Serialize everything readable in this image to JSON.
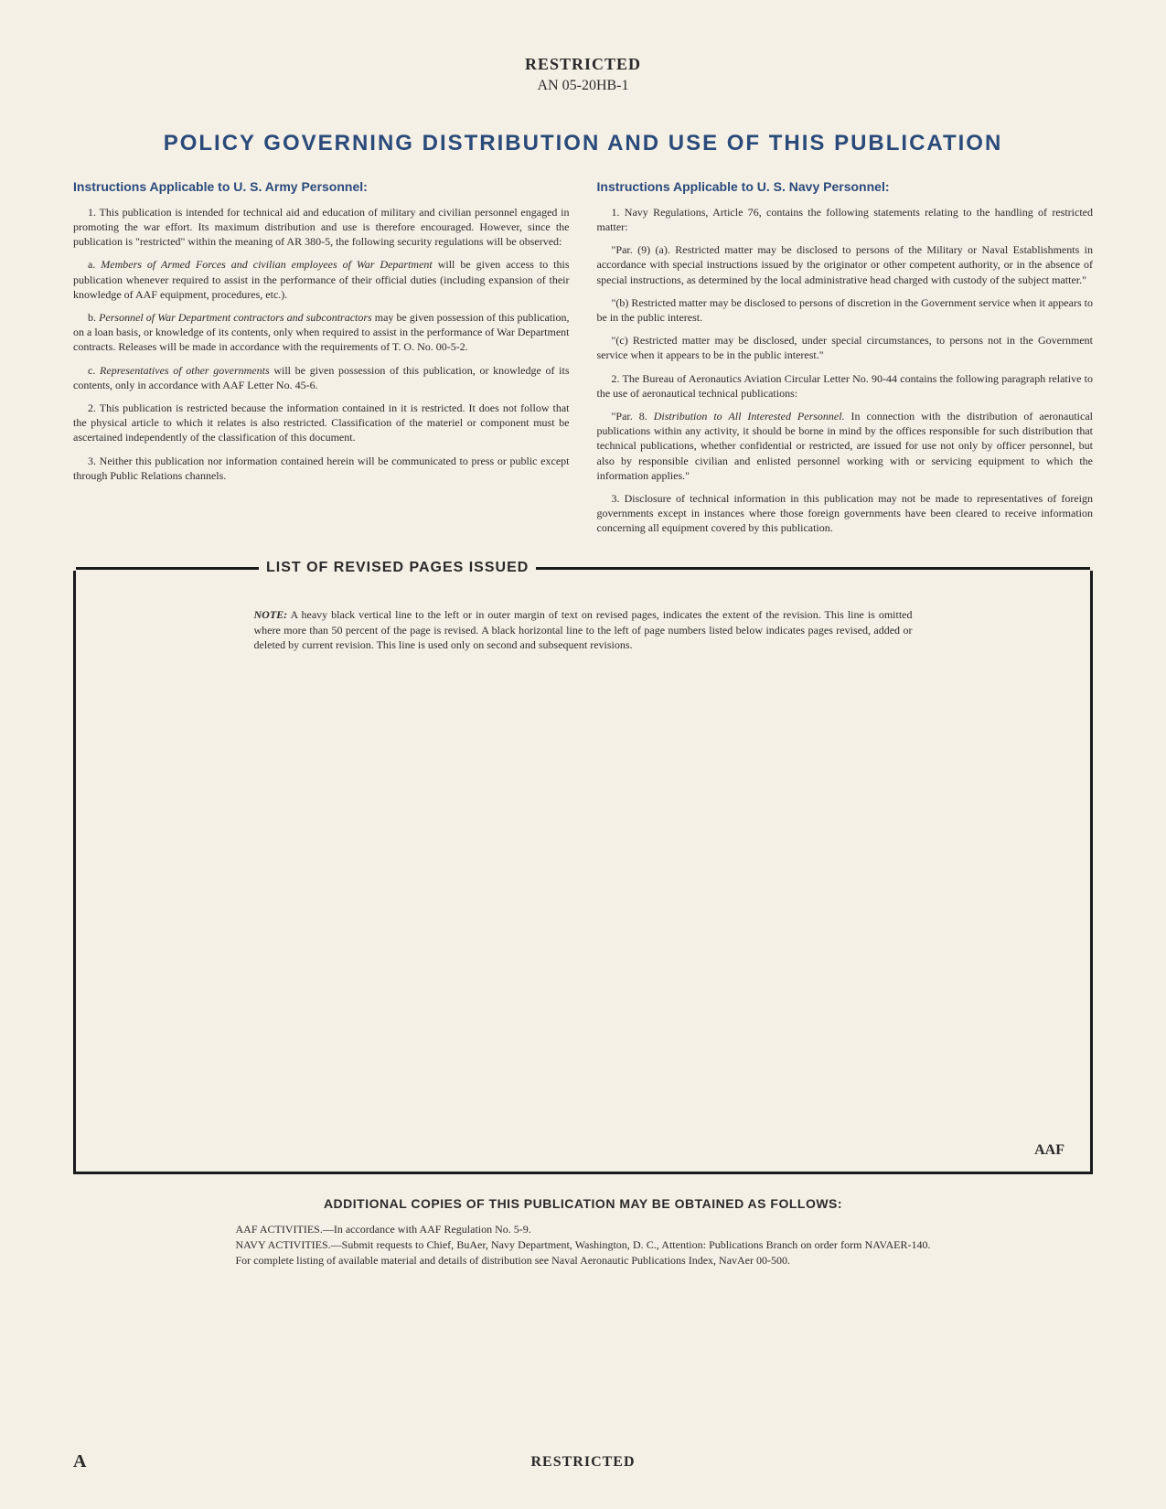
{
  "header": {
    "classification": "RESTRICTED",
    "doc_number": "AN 05-20HB-1"
  },
  "main_title": "POLICY GOVERNING DISTRIBUTION AND USE OF THIS PUBLICATION",
  "army": {
    "heading": "Instructions Applicable to U. S. Army Personnel:",
    "p1": "1. This publication is intended for technical aid and education of military and civilian personnel engaged in promoting the war effort. Its maximum distribution and use is therefore encouraged. However, since the publication is \"restricted\" within the meaning of AR 380-5, the following security regulations will be observed:",
    "pa_lead": "a. ",
    "pa_italic": "Members of Armed Forces and civilian employees of War Department",
    "pa_rest": " will be given access to this publication whenever required to assist in the performance of their official duties (including expansion of their knowledge of AAF equipment, procedures, etc.).",
    "pb_lead": "b. ",
    "pb_italic": "Personnel of War Department contractors and subcontractors",
    "pb_rest": " may be given possession of this publication, on a loan basis, or knowledge of its contents, only when required to assist in the performance of War Department contracts. Releases will be made in accordance with the requirements of T. O. No. 00-5-2.",
    "pc_lead": "c. ",
    "pc_italic": "Representatives of other governments",
    "pc_rest": " will be given possession of this publication, or knowledge of its contents, only in accordance with AAF Letter No. 45-6.",
    "p2": "2. This publication is restricted because the information contained in it is restricted. It does not follow that the physical article to which it relates is also restricted. Classification of the materiel or component must be ascertained independently of the classification of this document.",
    "p3": "3. Neither this publication nor information contained herein will be communicated to press or public except through Public Relations channels."
  },
  "navy": {
    "heading": "Instructions Applicable to U. S. Navy Personnel:",
    "p1": "1. Navy Regulations, Article 76, contains the following statements relating to the handling of restricted matter:",
    "p9a": "\"Par. (9) (a). Restricted matter may be disclosed to persons of the Military or Naval Establishments in accordance with special instructions issued by the originator or other competent authority, or in the absence of special instructions, as determined by the local administrative head charged with custody of the subject matter.\"",
    "p9b": "\"(b) Restricted matter may be disclosed to persons of discretion in the Government service when it appears to be in the public interest.",
    "p9c": "\"(c) Restricted matter may be disclosed, under special circumstances, to persons not in the Government service when it appears to be in the public interest.\"",
    "p2": "2. The Bureau of Aeronautics Aviation Circular Letter No. 90-44 contains the following paragraph relative to the use of aeronautical technical publications:",
    "p8_lead": "\"Par. 8. ",
    "p8_italic": "Distribution to All Interested Personnel.",
    "p8_rest": " In connection with the distribution of aeronautical publications within any activity, it should be borne in mind by the offices responsible for such distribution that technical publications, whether confidential or restricted, are issued for use not only by officer personnel, but also by responsible civilian and enlisted personnel working with or servicing equipment to which the information applies.\"",
    "p3": "3. Disclosure of technical information in this publication may not be made to representatives of foreign governments except in instances where those foreign governments have been cleared to receive information concerning all equipment covered by this publication."
  },
  "revised": {
    "title": "LIST OF REVISED PAGES ISSUED",
    "note_lead": "NOTE:",
    "note_body": " A heavy black vertical line to the left or in outer margin of text on revised pages, indicates the extent of the revision. This line is omitted where more than 50 percent of the page is revised. A black horizontal line to the left of page numbers listed below indicates pages revised, added or deleted by current revision. This line is used only on second and subsequent revisions.",
    "mark": "AAF"
  },
  "additional": {
    "title": "ADDITIONAL COPIES OF THIS PUBLICATION MAY BE OBTAINED AS FOLLOWS:",
    "aaf": "AAF ACTIVITIES.—In accordance with AAF Regulation No. 5-9.",
    "navy": "NAVY ACTIVITIES.—Submit requests to Chief, BuAer, Navy Department, Washington, D. C., Attention: Publications Branch on order form NAVAER-140. For complete listing of available material and details of distribution see Naval Aeronautic Publications Index, NavAer 00-500."
  },
  "footer": {
    "page_letter": "A",
    "classification": "RESTRICTED"
  },
  "colors": {
    "background": "#f5f0e6",
    "heading_blue": "#2a4a7a",
    "text": "#2a2a2a",
    "border": "#1a1a1a"
  }
}
